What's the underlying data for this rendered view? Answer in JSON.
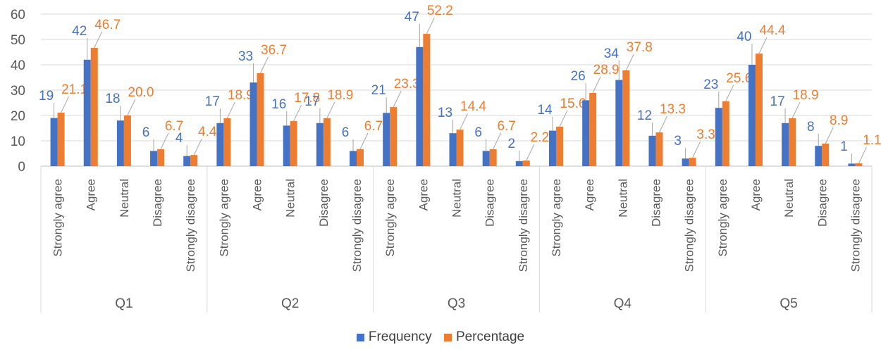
{
  "chart_data": {
    "type": "bar",
    "title": "",
    "xlabel": "",
    "ylabel": "",
    "ylim": [
      0,
      60
    ],
    "y_ticks": [
      0,
      10,
      20,
      30,
      40,
      50,
      60
    ],
    "grid": true,
    "legend_position": "bottom",
    "categories": [
      "Strongly agree",
      "Agree",
      "Neutral",
      "Disagree",
      "Strongly disagree"
    ],
    "groups": [
      "Q1",
      "Q2",
      "Q3",
      "Q4",
      "Q5"
    ],
    "series": [
      {
        "name": "Frequency",
        "color": "#4472C4",
        "values": [
          [
            19,
            42,
            18,
            6,
            4
          ],
          [
            17,
            33,
            16,
            17,
            6
          ],
          [
            21,
            47,
            13,
            6,
            2
          ],
          [
            14,
            26,
            34,
            12,
            3
          ],
          [
            23,
            40,
            17,
            8,
            1
          ]
        ],
        "labels": [
          [
            "19",
            "42",
            "18",
            "6",
            "4"
          ],
          [
            "17",
            "33",
            "16",
            "17",
            "6"
          ],
          [
            "21",
            "47",
            "13",
            "6",
            "2"
          ],
          [
            "14",
            "26",
            "34",
            "12",
            "3"
          ],
          [
            "23",
            "40",
            "17",
            "8",
            "1"
          ]
        ]
      },
      {
        "name": "Percentage",
        "color": "#ED7D31",
        "values": [
          [
            21.1,
            46.7,
            20.0,
            6.7,
            4.4
          ],
          [
            18.9,
            36.7,
            17.8,
            18.9,
            6.7
          ],
          [
            23.3,
            52.2,
            14.4,
            6.7,
            2.2
          ],
          [
            15.6,
            28.9,
            37.8,
            13.3,
            3.3
          ],
          [
            25.6,
            44.4,
            18.9,
            8.9,
            1.1
          ]
        ],
        "labels": [
          [
            "21.1",
            "46.7",
            "20.0",
            "6.7",
            "4.4"
          ],
          [
            "18.9",
            "36.7",
            "17.8",
            "18.9",
            "6.7"
          ],
          [
            "23.3",
            "52.2",
            "14.4",
            "6.7",
            "2.2"
          ],
          [
            "15.6",
            "28.9",
            "37.8",
            "13.3",
            "3.3"
          ],
          [
            "25.6",
            "44.4",
            "18.9",
            "8.9",
            "1.1"
          ]
        ]
      }
    ]
  }
}
